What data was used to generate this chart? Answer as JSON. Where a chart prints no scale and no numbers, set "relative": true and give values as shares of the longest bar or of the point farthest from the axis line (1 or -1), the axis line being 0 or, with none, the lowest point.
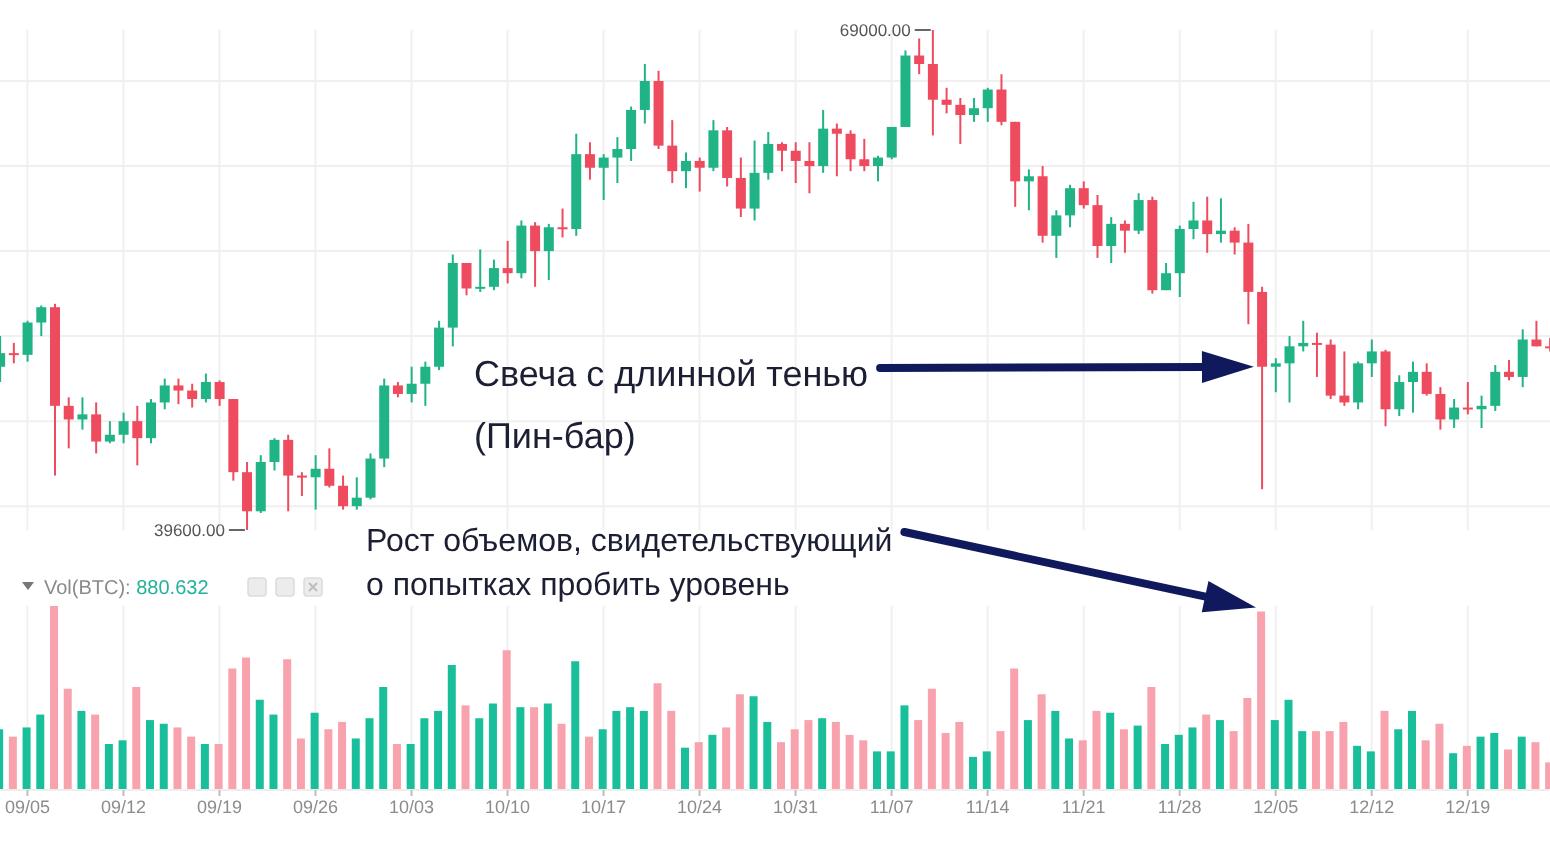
{
  "chart_data": [
    {
      "type": "candlestick",
      "x": [
        "--09-03",
        "--09-04",
        "--09-05",
        "--09-06",
        "--09-07",
        "--09-08",
        "--09-09",
        "--09-10",
        "--09-11",
        "--09-12",
        "--09-13",
        "--09-14",
        "--09-15",
        "--09-16",
        "--09-17",
        "--09-18",
        "--09-19",
        "--09-20",
        "--09-21",
        "--09-22",
        "--09-23",
        "--09-24",
        "--09-25",
        "--09-26",
        "--09-27",
        "--09-28",
        "--09-29",
        "--09-30",
        "--10-01",
        "--10-02",
        "--10-03",
        "--10-04",
        "--10-05",
        "--10-06",
        "--10-07",
        "--10-08",
        "--10-09",
        "--10-10",
        "--10-11",
        "--10-12",
        "--10-13",
        "--10-14",
        "--10-15",
        "--10-16",
        "--10-17",
        "--10-18",
        "--10-19",
        "--10-20",
        "--10-21",
        "--10-22",
        "--10-23",
        "--10-24",
        "--10-25",
        "--10-26",
        "--10-27",
        "--10-28",
        "--10-29",
        "--10-30",
        "--10-31",
        "--11-01",
        "--11-02",
        "--11-03",
        "--11-04",
        "--11-05",
        "--11-06",
        "--11-07",
        "--11-08",
        "--11-09",
        "--11-10",
        "--11-11",
        "--11-12",
        "--11-13",
        "--11-14",
        "--11-15",
        "--11-16",
        "--11-17",
        "--11-18",
        "--11-19",
        "--11-20",
        "--11-21",
        "--11-22",
        "--11-23",
        "--11-24",
        "--11-25",
        "--11-26",
        "--11-27",
        "--11-28",
        "--11-29",
        "--11-30",
        "--12-01",
        "--12-02",
        "--12-03",
        "--12-04",
        "--12-05",
        "--12-06",
        "--12-07",
        "--12-08",
        "--12-09",
        "--12-10",
        "--12-11",
        "--12-12",
        "--12-13",
        "--12-14",
        "--12-15",
        "--12-16",
        "--12-17",
        "--12-18",
        "--12-19",
        "--12-20",
        "--12-21",
        "--12-22",
        "--12-23",
        "--12-24",
        "--12-25"
      ],
      "ohlc": [
        [
          49200,
          51000,
          48300,
          50000
        ],
        [
          50000,
          50600,
          49400,
          49900
        ],
        [
          49900,
          51900,
          49500,
          51800
        ],
        [
          51800,
          52800,
          51000,
          52700
        ],
        [
          52700,
          52900,
          42800,
          46900
        ],
        [
          46900,
          47400,
          44400,
          46100
        ],
        [
          46100,
          47400,
          45500,
          46400
        ],
        [
          46400,
          47100,
          44100,
          44800
        ],
        [
          44800,
          46000,
          44700,
          45200
        ],
        [
          45200,
          46500,
          44700,
          46000
        ],
        [
          46000,
          46900,
          43400,
          45000
        ],
        [
          45000,
          47300,
          44700,
          47100
        ],
        [
          47100,
          48500,
          46700,
          48100
        ],
        [
          48100,
          48500,
          47000,
          47800
        ],
        [
          47800,
          48200,
          46800,
          47300
        ],
        [
          47300,
          48800,
          47100,
          48300
        ],
        [
          48300,
          48400,
          46900,
          47300
        ],
        [
          47300,
          47300,
          42500,
          43000
        ],
        [
          43000,
          43600,
          39600,
          40700
        ],
        [
          40700,
          44000,
          40600,
          43600
        ],
        [
          43600,
          45000,
          43100,
          44900
        ],
        [
          44900,
          45200,
          40700,
          42800
        ],
        [
          42800,
          43000,
          41600,
          42700
        ],
        [
          42700,
          44000,
          40800,
          43200
        ],
        [
          43200,
          44400,
          42100,
          42200
        ],
        [
          42200,
          42800,
          40800,
          41000
        ],
        [
          41000,
          42700,
          40800,
          41500
        ],
        [
          41500,
          44100,
          41400,
          43800
        ],
        [
          43800,
          48500,
          43300,
          48100
        ],
        [
          48100,
          48300,
          47400,
          47600
        ],
        [
          47600,
          49200,
          47100,
          48200
        ],
        [
          48200,
          49500,
          46900,
          49200
        ],
        [
          49200,
          51900,
          49000,
          51500
        ],
        [
          51500,
          55800,
          50400,
          55300
        ],
        [
          55300,
          55300,
          53400,
          53800
        ],
        [
          53800,
          56100,
          53600,
          53900
        ],
        [
          53900,
          55500,
          53700,
          55000
        ],
        [
          55000,
          56600,
          54100,
          54700
        ],
        [
          54700,
          57800,
          54400,
          57500
        ],
        [
          57500,
          57700,
          53900,
          56000
        ],
        [
          56000,
          57600,
          54300,
          57400
        ],
        [
          57400,
          58500,
          56800,
          57300
        ],
        [
          57300,
          62900,
          56900,
          61700
        ],
        [
          61700,
          62400,
          60200,
          60900
        ],
        [
          60900,
          61700,
          59000,
          61500
        ],
        [
          61500,
          62700,
          60000,
          62000
        ],
        [
          62000,
          64500,
          61300,
          64300
        ],
        [
          64300,
          67000,
          63500,
          66000
        ],
        [
          66000,
          66600,
          62000,
          62200
        ],
        [
          62200,
          63700,
          60000,
          60700
        ],
        [
          60700,
          61800,
          59700,
          61300
        ],
        [
          61300,
          61500,
          59500,
          60900
        ],
        [
          60900,
          63700,
          60700,
          63100
        ],
        [
          63100,
          63300,
          59800,
          60300
        ],
        [
          60300,
          61500,
          58000,
          58500
        ],
        [
          58500,
          62500,
          57800,
          60600
        ],
        [
          60600,
          63000,
          60200,
          62300
        ],
        [
          62300,
          62400,
          60700,
          61900
        ],
        [
          61900,
          62400,
          60000,
          61300
        ],
        [
          61300,
          62400,
          59400,
          61000
        ],
        [
          61000,
          64300,
          60600,
          63200
        ],
        [
          63200,
          63500,
          60400,
          62900
        ],
        [
          62900,
          63100,
          60700,
          61400
        ],
        [
          61400,
          62600,
          60700,
          61000
        ],
        [
          61000,
          61600,
          60100,
          61500
        ],
        [
          61500,
          63300,
          61400,
          63300
        ],
        [
          63300,
          67800,
          63300,
          67500
        ],
        [
          67500,
          68500,
          66400,
          67000
        ],
        [
          67000,
          69000,
          62800,
          64900
        ],
        [
          64900,
          65600,
          64100,
          64600
        ],
        [
          64600,
          65000,
          62300,
          64000
        ],
        [
          64000,
          65000,
          63600,
          64400
        ],
        [
          64400,
          65600,
          63600,
          65500
        ],
        [
          65500,
          66400,
          63400,
          63600
        ],
        [
          63600,
          63600,
          58600,
          60100
        ],
        [
          60100,
          60800,
          58400,
          60400
        ],
        [
          60400,
          61000,
          56500,
          56900
        ],
        [
          56900,
          58400,
          55600,
          58100
        ],
        [
          58100,
          59900,
          57400,
          59700
        ],
        [
          59700,
          60100,
          58500,
          58700
        ],
        [
          58700,
          59300,
          55600,
          56300
        ],
        [
          56300,
          58000,
          55300,
          57600
        ],
        [
          57600,
          57800,
          55900,
          57200
        ],
        [
          57200,
          59400,
          57000,
          59000
        ],
        [
          59000,
          59200,
          53500,
          53700
        ],
        [
          53700,
          55300,
          53700,
          54700
        ],
        [
          54700,
          57500,
          53300,
          57300
        ],
        [
          57300,
          58900,
          56700,
          57800
        ],
        [
          57800,
          59200,
          55900,
          57000
        ],
        [
          57000,
          59100,
          56500,
          57200
        ],
        [
          57200,
          57400,
          55800,
          56500
        ],
        [
          56500,
          57600,
          51700,
          53600
        ],
        [
          53600,
          53900,
          42000,
          49200
        ],
        [
          49200,
          49700,
          47700,
          49400
        ],
        [
          49400,
          51000,
          47100,
          50400
        ],
        [
          50400,
          51900,
          50100,
          50600
        ],
        [
          50600,
          51200,
          48600,
          50500
        ],
        [
          50500,
          50800,
          47300,
          47500
        ],
        [
          47500,
          50100,
          46900,
          47100
        ],
        [
          47100,
          49500,
          46700,
          49400
        ],
        [
          49400,
          50800,
          48600,
          50100
        ],
        [
          50100,
          50200,
          45700,
          46700
        ],
        [
          46700,
          48700,
          46300,
          48300
        ],
        [
          48300,
          49500,
          46500,
          48900
        ],
        [
          48900,
          49400,
          47500,
          47600
        ],
        [
          47600,
          48000,
          45500,
          46100
        ],
        [
          46100,
          47300,
          45600,
          46800
        ],
        [
          46800,
          48300,
          46400,
          46700
        ],
        [
          46700,
          47500,
          45600,
          46900
        ],
        [
          46900,
          49300,
          46600,
          48900
        ],
        [
          48900,
          49600,
          48400,
          48600
        ],
        [
          48600,
          51400,
          48000,
          50800
        ],
        [
          50800,
          51900,
          50400,
          50400
        ],
        [
          50400,
          50900,
          50100,
          50300
        ]
      ],
      "colors": [
        "#1fb386",
        "#ef4b5f",
        "#1fb386",
        "#1fb386",
        "#ef4b5f",
        "#ef4b5f",
        "#1fb386",
        "#ef4b5f",
        "#1fb386",
        "#1fb386",
        "#ef4b5f",
        "#1fb386",
        "#1fb386",
        "#ef4b5f",
        "#ef4b5f",
        "#1fb386",
        "#ef4b5f",
        "#ef4b5f",
        "#ef4b5f",
        "#1fb386",
        "#1fb386",
        "#ef4b5f",
        "#ef4b5f",
        "#1fb386",
        "#ef4b5f",
        "#ef4b5f",
        "#1fb386",
        "#1fb386",
        "#1fb386",
        "#ef4b5f",
        "#1fb386",
        "#1fb386",
        "#1fb386",
        "#1fb386",
        "#ef4b5f",
        "#1fb386",
        "#1fb386",
        "#ef4b5f",
        "#1fb386",
        "#ef4b5f",
        "#1fb386",
        "#ef4b5f",
        "#1fb386",
        "#ef4b5f",
        "#1fb386",
        "#1fb386",
        "#1fb386",
        "#1fb386",
        "#ef4b5f",
        "#ef4b5f",
        "#1fb386",
        "#ef4b5f",
        "#1fb386",
        "#ef4b5f",
        "#ef4b5f",
        "#1fb386",
        "#1fb386",
        "#ef4b5f",
        "#ef4b5f",
        "#ef4b5f",
        "#1fb386",
        "#ef4b5f",
        "#ef4b5f",
        "#ef4b5f",
        "#1fb386",
        "#1fb386",
        "#1fb386",
        "#ef4b5f",
        "#ef4b5f",
        "#ef4b5f",
        "#ef4b5f",
        "#1fb386",
        "#1fb386",
        "#ef4b5f",
        "#ef4b5f",
        "#1fb386",
        "#ef4b5f",
        "#1fb386",
        "#1fb386",
        "#ef4b5f",
        "#ef4b5f",
        "#1fb386",
        "#ef4b5f",
        "#1fb386",
        "#ef4b5f",
        "#1fb386",
        "#1fb386",
        "#1fb386",
        "#ef4b5f",
        "#1fb386",
        "#ef4b5f",
        "#ef4b5f",
        "#ef4b5f",
        "#1fb386",
        "#1fb386",
        "#1fb386",
        "#ef4b5f",
        "#ef4b5f",
        "#ef4b5f",
        "#1fb386",
        "#1fb386",
        "#ef4b5f",
        "#1fb386",
        "#1fb386",
        "#ef4b5f",
        "#ef4b5f",
        "#1fb386",
        "#ef4b5f",
        "#1fb386",
        "#1fb386",
        "#ef4b5f",
        "#1fb386",
        "#ef4b5f",
        "#ef4b5f"
      ],
      "xlim": [
        "--09-03",
        "--12-25"
      ],
      "xticks": [
        {
          "value": "--09-05",
          "label": "09/05"
        },
        {
          "value": "--09-12",
          "label": "09/12"
        },
        {
          "value": "--09-19",
          "label": "09/19"
        },
        {
          "value": "--09-26",
          "label": "09/26"
        },
        {
          "value": "--10-03",
          "label": "10/03"
        },
        {
          "value": "--10-10",
          "label": "10/10"
        },
        {
          "value": "--10-17",
          "label": "10/17"
        },
        {
          "value": "--10-24",
          "label": "10/24"
        },
        {
          "value": "--10-31",
          "label": "10/31"
        },
        {
          "value": "--11-07",
          "label": "11/07"
        },
        {
          "value": "--11-14",
          "label": "11/14"
        },
        {
          "value": "--11-21",
          "label": "11/21"
        },
        {
          "value": "--11-28",
          "label": "11/28"
        },
        {
          "value": "--12-05",
          "label": "12/05"
        },
        {
          "value": "--12-12",
          "label": "12/12"
        },
        {
          "value": "--12-19",
          "label": "12/19"
        }
      ],
      "yticks": [
        {
          "value": 41000,
          "label": null
        },
        {
          "value": 46000,
          "label": null
        },
        {
          "value": 51000,
          "label": null
        },
        {
          "value": 56000,
          "label": null
        },
        {
          "value": 61000,
          "label": null
        },
        {
          "value": 66000,
          "label": null
        }
      ],
      "grid": true,
      "tick_labels": false,
      "annotations": [
        {
          "text": "69000.00",
          "x": "--11-10",
          "y": 69000
        },
        {
          "text": "39600.00",
          "x": "--09-21",
          "y": 39600
        },
        "Свеча с длинной тенью\n(Пин-бар)"
      ]
    },
    {
      "type": "bar",
      "x": [
        "--09-03",
        "--09-04",
        "--09-05",
        "--09-06",
        "--09-07",
        "--09-08",
        "--09-09",
        "--09-10",
        "--09-11",
        "--09-12",
        "--09-13",
        "--09-14",
        "--09-15",
        "--09-16",
        "--09-17",
        "--09-18",
        "--09-19",
        "--09-20",
        "--09-21",
        "--09-22",
        "--09-23",
        "--09-24",
        "--09-25",
        "--09-26",
        "--09-27",
        "--09-28",
        "--09-29",
        "--09-30",
        "--10-01",
        "--10-02",
        "--10-03",
        "--10-04",
        "--10-05",
        "--10-06",
        "--10-07",
        "--10-08",
        "--10-09",
        "--10-10",
        "--10-11",
        "--10-12",
        "--10-13",
        "--10-14",
        "--10-15",
        "--10-16",
        "--10-17",
        "--10-18",
        "--10-19",
        "--10-20",
        "--10-21",
        "--10-22",
        "--10-23",
        "--10-24",
        "--10-25",
        "--10-26",
        "--10-27",
        "--10-28",
        "--10-29",
        "--10-30",
        "--10-31",
        "--11-01",
        "--11-02",
        "--11-03",
        "--11-04",
        "--11-05",
        "--11-06",
        "--11-07",
        "--11-08",
        "--11-09",
        "--11-10",
        "--11-11",
        "--11-12",
        "--11-13",
        "--11-14",
        "--11-15",
        "--11-16",
        "--11-17",
        "--11-18",
        "--11-19",
        "--11-20",
        "--11-21",
        "--11-22",
        "--11-23",
        "--11-24",
        "--11-25",
        "--11-26",
        "--11-27",
        "--11-28",
        "--11-29",
        "--11-30",
        "--12-01",
        "--12-02",
        "--12-03",
        "--12-04",
        "--12-05",
        "--12-06",
        "--12-07",
        "--12-08",
        "--12-09",
        "--12-10",
        "--12-11",
        "--12-12",
        "--12-13",
        "--12-14",
        "--12-15",
        "--12-16",
        "--12-17",
        "--12-18",
        "--12-19",
        "--12-20",
        "--12-21",
        "--12-22",
        "--12-23",
        "--12-24",
        "--12-25"
      ],
      "values": [
        0.33,
        0.29,
        0.34,
        0.41,
        1,
        0.55,
        0.43,
        0.41,
        0.25,
        0.27,
        0.56,
        0.38,
        0.36,
        0.34,
        0.29,
        0.25,
        0.25,
        0.66,
        0.72,
        0.49,
        0.41,
        0.71,
        0.28,
        0.42,
        0.33,
        0.37,
        0.28,
        0.39,
        0.56,
        0.25,
        0.25,
        0.39,
        0.43,
        0.68,
        0.46,
        0.39,
        0.47,
        0.76,
        0.45,
        0.45,
        0.47,
        0.36,
        0.7,
        0.29,
        0.33,
        0.43,
        0.45,
        0.43,
        0.58,
        0.43,
        0.23,
        0.26,
        0.3,
        0.34,
        0.52,
        0.51,
        0.37,
        0.26,
        0.33,
        0.38,
        0.39,
        0.37,
        0.3,
        0.27,
        0.21,
        0.21,
        0.46,
        0.38,
        0.55,
        0.31,
        0.37,
        0.18,
        0.21,
        0.32,
        0.66,
        0.38,
        0.52,
        0.43,
        0.28,
        0.27,
        0.43,
        0.42,
        0.33,
        0.35,
        0.56,
        0.25,
        0.3,
        0.34,
        0.41,
        0.38,
        0.32,
        0.5,
        0.97,
        0.38,
        0.49,
        0.32,
        0.32,
        0.32,
        0.37,
        0.24,
        0.21,
        0.43,
        0.33,
        0.43,
        0.27,
        0.36,
        0.2,
        0.24,
        0.29,
        0.31,
        0.22,
        0.29,
        0.26,
        0.15
      ],
      "colors": [
        "#19bf9a",
        "#f8a2ad",
        "#19bf9a",
        "#19bf9a",
        "#f8a2ad",
        "#f8a2ad",
        "#19bf9a",
        "#f8a2ad",
        "#19bf9a",
        "#19bf9a",
        "#f8a2ad",
        "#19bf9a",
        "#19bf9a",
        "#f8a2ad",
        "#f8a2ad",
        "#19bf9a",
        "#f8a2ad",
        "#f8a2ad",
        "#f8a2ad",
        "#19bf9a",
        "#19bf9a",
        "#f8a2ad",
        "#f8a2ad",
        "#19bf9a",
        "#f8a2ad",
        "#f8a2ad",
        "#19bf9a",
        "#19bf9a",
        "#19bf9a",
        "#f8a2ad",
        "#19bf9a",
        "#19bf9a",
        "#19bf9a",
        "#19bf9a",
        "#f8a2ad",
        "#19bf9a",
        "#19bf9a",
        "#f8a2ad",
        "#19bf9a",
        "#f8a2ad",
        "#19bf9a",
        "#f8a2ad",
        "#19bf9a",
        "#f8a2ad",
        "#19bf9a",
        "#19bf9a",
        "#19bf9a",
        "#19bf9a",
        "#f8a2ad",
        "#f8a2ad",
        "#19bf9a",
        "#f8a2ad",
        "#19bf9a",
        "#f8a2ad",
        "#f8a2ad",
        "#19bf9a",
        "#19bf9a",
        "#f8a2ad",
        "#f8a2ad",
        "#f8a2ad",
        "#19bf9a",
        "#f8a2ad",
        "#f8a2ad",
        "#f8a2ad",
        "#19bf9a",
        "#19bf9a",
        "#19bf9a",
        "#f8a2ad",
        "#f8a2ad",
        "#f8a2ad",
        "#f8a2ad",
        "#19bf9a",
        "#19bf9a",
        "#f8a2ad",
        "#f8a2ad",
        "#19bf9a",
        "#f8a2ad",
        "#19bf9a",
        "#19bf9a",
        "#f8a2ad",
        "#f8a2ad",
        "#19bf9a",
        "#f8a2ad",
        "#19bf9a",
        "#f8a2ad",
        "#19bf9a",
        "#19bf9a",
        "#19bf9a",
        "#f8a2ad",
        "#19bf9a",
        "#f8a2ad",
        "#f8a2ad",
        "#f8a2ad",
        "#19bf9a",
        "#19bf9a",
        "#19bf9a",
        "#f8a2ad",
        "#f8a2ad",
        "#f8a2ad",
        "#19bf9a",
        "#19bf9a",
        "#f8a2ad",
        "#19bf9a",
        "#19bf9a",
        "#f8a2ad",
        "#f8a2ad",
        "#19bf9a",
        "#f8a2ad",
        "#19bf9a",
        "#19bf9a",
        "#f8a2ad",
        "#19bf9a",
        "#f8a2ad",
        "#f8a2ad"
      ],
      "relative": true,
      "xlim": [
        "--09-03",
        "--12-25"
      ],
      "xticks": [
        {
          "value": "--09-05",
          "label": "09/05"
        },
        {
          "value": "--09-12",
          "label": "09/12"
        },
        {
          "value": "--09-19",
          "label": "09/19"
        },
        {
          "value": "--09-26",
          "label": "09/26"
        },
        {
          "value": "--10-03",
          "label": "10/03"
        },
        {
          "value": "--10-10",
          "label": "10/10"
        },
        {
          "value": "--10-17",
          "label": "10/17"
        },
        {
          "value": "--10-24",
          "label": "10/24"
        },
        {
          "value": "--10-31",
          "label": "10/31"
        },
        {
          "value": "--11-07",
          "label": "11/07"
        },
        {
          "value": "--11-14",
          "label": "11/14"
        },
        {
          "value": "--11-21",
          "label": "11/21"
        },
        {
          "value": "--11-28",
          "label": "11/28"
        },
        {
          "value": "--12-05",
          "label": "12/05"
        },
        {
          "value": "--12-12",
          "label": "12/12"
        },
        {
          "value": "--12-19",
          "label": "12/19"
        }
      ],
      "grid": "x",
      "annotations": [
        "Vol(BTC): 880.632",
        "Рост объемов, свидетельствующий\nо попытках пробить уровень"
      ]
    }
  ]
}
